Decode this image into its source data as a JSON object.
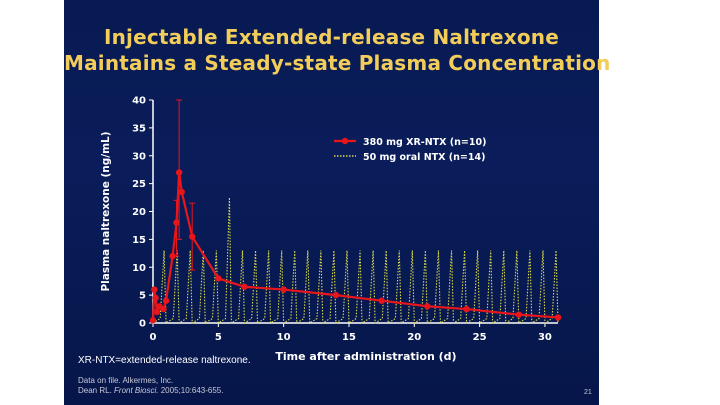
{
  "slide": {
    "title_line1": "Injectable Extended-release Naltrexone",
    "title_line2": "Maintains a Steady-state Plasma Concentration",
    "footnote": "XR-NTX=extended-release naltrexone.",
    "source_line1": "Data on file. Alkermes, Inc.",
    "source_line2_authors": "Dean RL.",
    "source_line2_journal": "Front Biosci.",
    "source_line2_citation": "2005;10:643-655.",
    "page_number": "21"
  },
  "colors": {
    "background": "#0a1d5a",
    "title": "#f2cd5a",
    "xr_series": "#e8151b",
    "oral_series": "#d8d84a",
    "axis": "#ffffff"
  },
  "chart_data": {
    "type": "line",
    "ylabel": "Plasma naltrexone (ng/mL)",
    "xlabel": "Time after administration (d)",
    "xlim": [
      0,
      31
    ],
    "ylim": [
      0,
      40
    ],
    "xticks": [
      0,
      5,
      10,
      15,
      20,
      25,
      30
    ],
    "yticks": [
      0,
      5,
      10,
      15,
      20,
      25,
      30,
      35,
      40
    ],
    "legend_position": "top-right",
    "series": [
      {
        "name": "380 mg XR-NTX (n=10)",
        "style": "solid-with-markers",
        "x": [
          0,
          0.1,
          0.2,
          0.3,
          0.5,
          0.8,
          1.0,
          1.5,
          1.8,
          2.0,
          2.2,
          3.0,
          5.0,
          7.0,
          10.0,
          14.0,
          17.5,
          21.0,
          24.0,
          28.0,
          31.0
        ],
        "y": [
          0.5,
          6.0,
          4.5,
          2.0,
          3.0,
          2.5,
          4.0,
          12.0,
          18.0,
          27.0,
          23.5,
          15.5,
          8.0,
          6.5,
          6.0,
          5.0,
          4.0,
          3.0,
          2.5,
          1.5,
          1.0
        ],
        "error_upper": [
          null,
          null,
          null,
          null,
          null,
          null,
          null,
          null,
          22.0,
          40.0,
          null,
          21.5,
          null,
          null,
          null,
          null,
          null,
          null,
          null,
          null,
          null
        ],
        "error_lower": [
          null,
          null,
          null,
          null,
          null,
          null,
          null,
          null,
          12.0,
          15.0,
          null,
          9.5,
          null,
          null,
          null,
          null,
          null,
          null,
          null,
          null,
          null
        ]
      },
      {
        "name": "50 mg oral NTX (n=14)",
        "style": "dotted-oscillating",
        "dose_interval_days": 1,
        "peak": 13,
        "trough": 0,
        "extra_peak": {
          "x": 5,
          "y": 22.5
        }
      }
    ]
  }
}
